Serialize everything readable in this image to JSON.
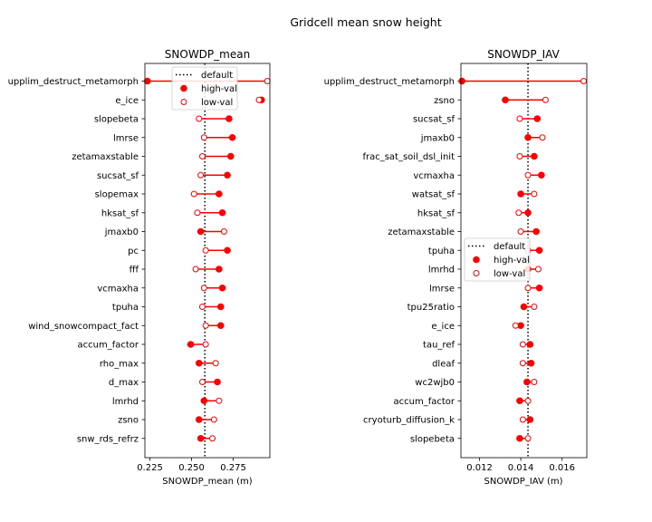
{
  "figure_title": "Gridcell mean snow height",
  "colors": {
    "marker": "#ff0000",
    "default_line": "#000000"
  },
  "chart_data": [
    {
      "type": "dumbbell",
      "title": "SNOWDP_mean",
      "xlabel": "SNOWDP_mean (m)",
      "xlim": [
        0.222,
        0.297
      ],
      "xticks": [
        0.225,
        0.25,
        0.275
      ],
      "xtick_labels": [
        "0.225",
        "0.250",
        "0.275"
      ],
      "default": 0.258,
      "legend": {
        "placement": "upper center",
        "entries": [
          "default",
          "high-val",
          "low-val"
        ]
      },
      "categories": [
        "upplim_destruct_metamorph",
        "e_ice",
        "slopebeta",
        "lmrse",
        "zetamaxstable",
        "sucsat_sf",
        "slopemax",
        "hksat_sf",
        "jmaxb0",
        "pc",
        "fff",
        "vcmaxha",
        "tpuha",
        "wind_snowcompact_fact",
        "accum_factor",
        "rho_max",
        "d_max",
        "lmrhd",
        "zsno",
        "snw_rds_refrz"
      ],
      "series": [
        {
          "name": "high-val",
          "values": [
            0.2235,
            0.292,
            0.2725,
            0.2745,
            0.2735,
            0.2715,
            0.2665,
            0.2685,
            0.2555,
            0.2715,
            0.2665,
            0.2685,
            0.2675,
            0.2675,
            0.2495,
            0.2545,
            0.2655,
            0.2575,
            0.2545,
            0.2555
          ]
        },
        {
          "name": "low-val",
          "values": [
            0.2955,
            0.2905,
            0.2545,
            0.2575,
            0.2565,
            0.2555,
            0.2515,
            0.2535,
            0.2695,
            0.2585,
            0.2525,
            0.2575,
            0.2565,
            0.2585,
            0.2585,
            0.2645,
            0.2565,
            0.2665,
            0.2635,
            0.2625
          ]
        }
      ]
    },
    {
      "type": "dumbbell",
      "title": "SNOWDP_IAV",
      "xlabel": "SNOWDP_IAV (m)",
      "xlim": [
        0.0111,
        0.0172
      ],
      "xticks": [
        0.012,
        0.014,
        0.016
      ],
      "xtick_labels": [
        "0.012",
        "0.014",
        "0.016"
      ],
      "default": 0.01435,
      "legend": {
        "placement": "center left",
        "entries": [
          "default",
          "high-val",
          "low-val"
        ]
      },
      "categories": [
        "upplim_destruct_metamorph",
        "zsno",
        "sucsat_sf",
        "jmaxb0",
        "frac_sat_soil_dsl_init",
        "vcmaxha",
        "watsat_sf",
        "hksat_sf",
        "zetamaxstable",
        "tpuha",
        "lmrhd",
        "lmrse",
        "tpu25ratio",
        "e_ice",
        "tau_ref",
        "dleaf",
        "wc2wjb0",
        "accum_factor",
        "cryoturb_diffusion_k",
        "slopebeta"
      ],
      "series": [
        {
          "name": "high-val",
          "values": [
            0.01115,
            0.01325,
            0.0148,
            0.01435,
            0.01465,
            0.015,
            0.014,
            0.01435,
            0.01475,
            0.0149,
            0.01435,
            0.0149,
            0.01415,
            0.014,
            0.01445,
            0.0145,
            0.0143,
            0.01395,
            0.01445,
            0.01395
          ]
        },
        {
          "name": "low-val",
          "values": [
            0.01705,
            0.0152,
            0.01395,
            0.01505,
            0.01395,
            0.01435,
            0.01465,
            0.0139,
            0.014,
            0.01435,
            0.01485,
            0.01435,
            0.01465,
            0.01375,
            0.0141,
            0.0141,
            0.01465,
            0.01435,
            0.0141,
            0.01435
          ]
        }
      ]
    }
  ]
}
